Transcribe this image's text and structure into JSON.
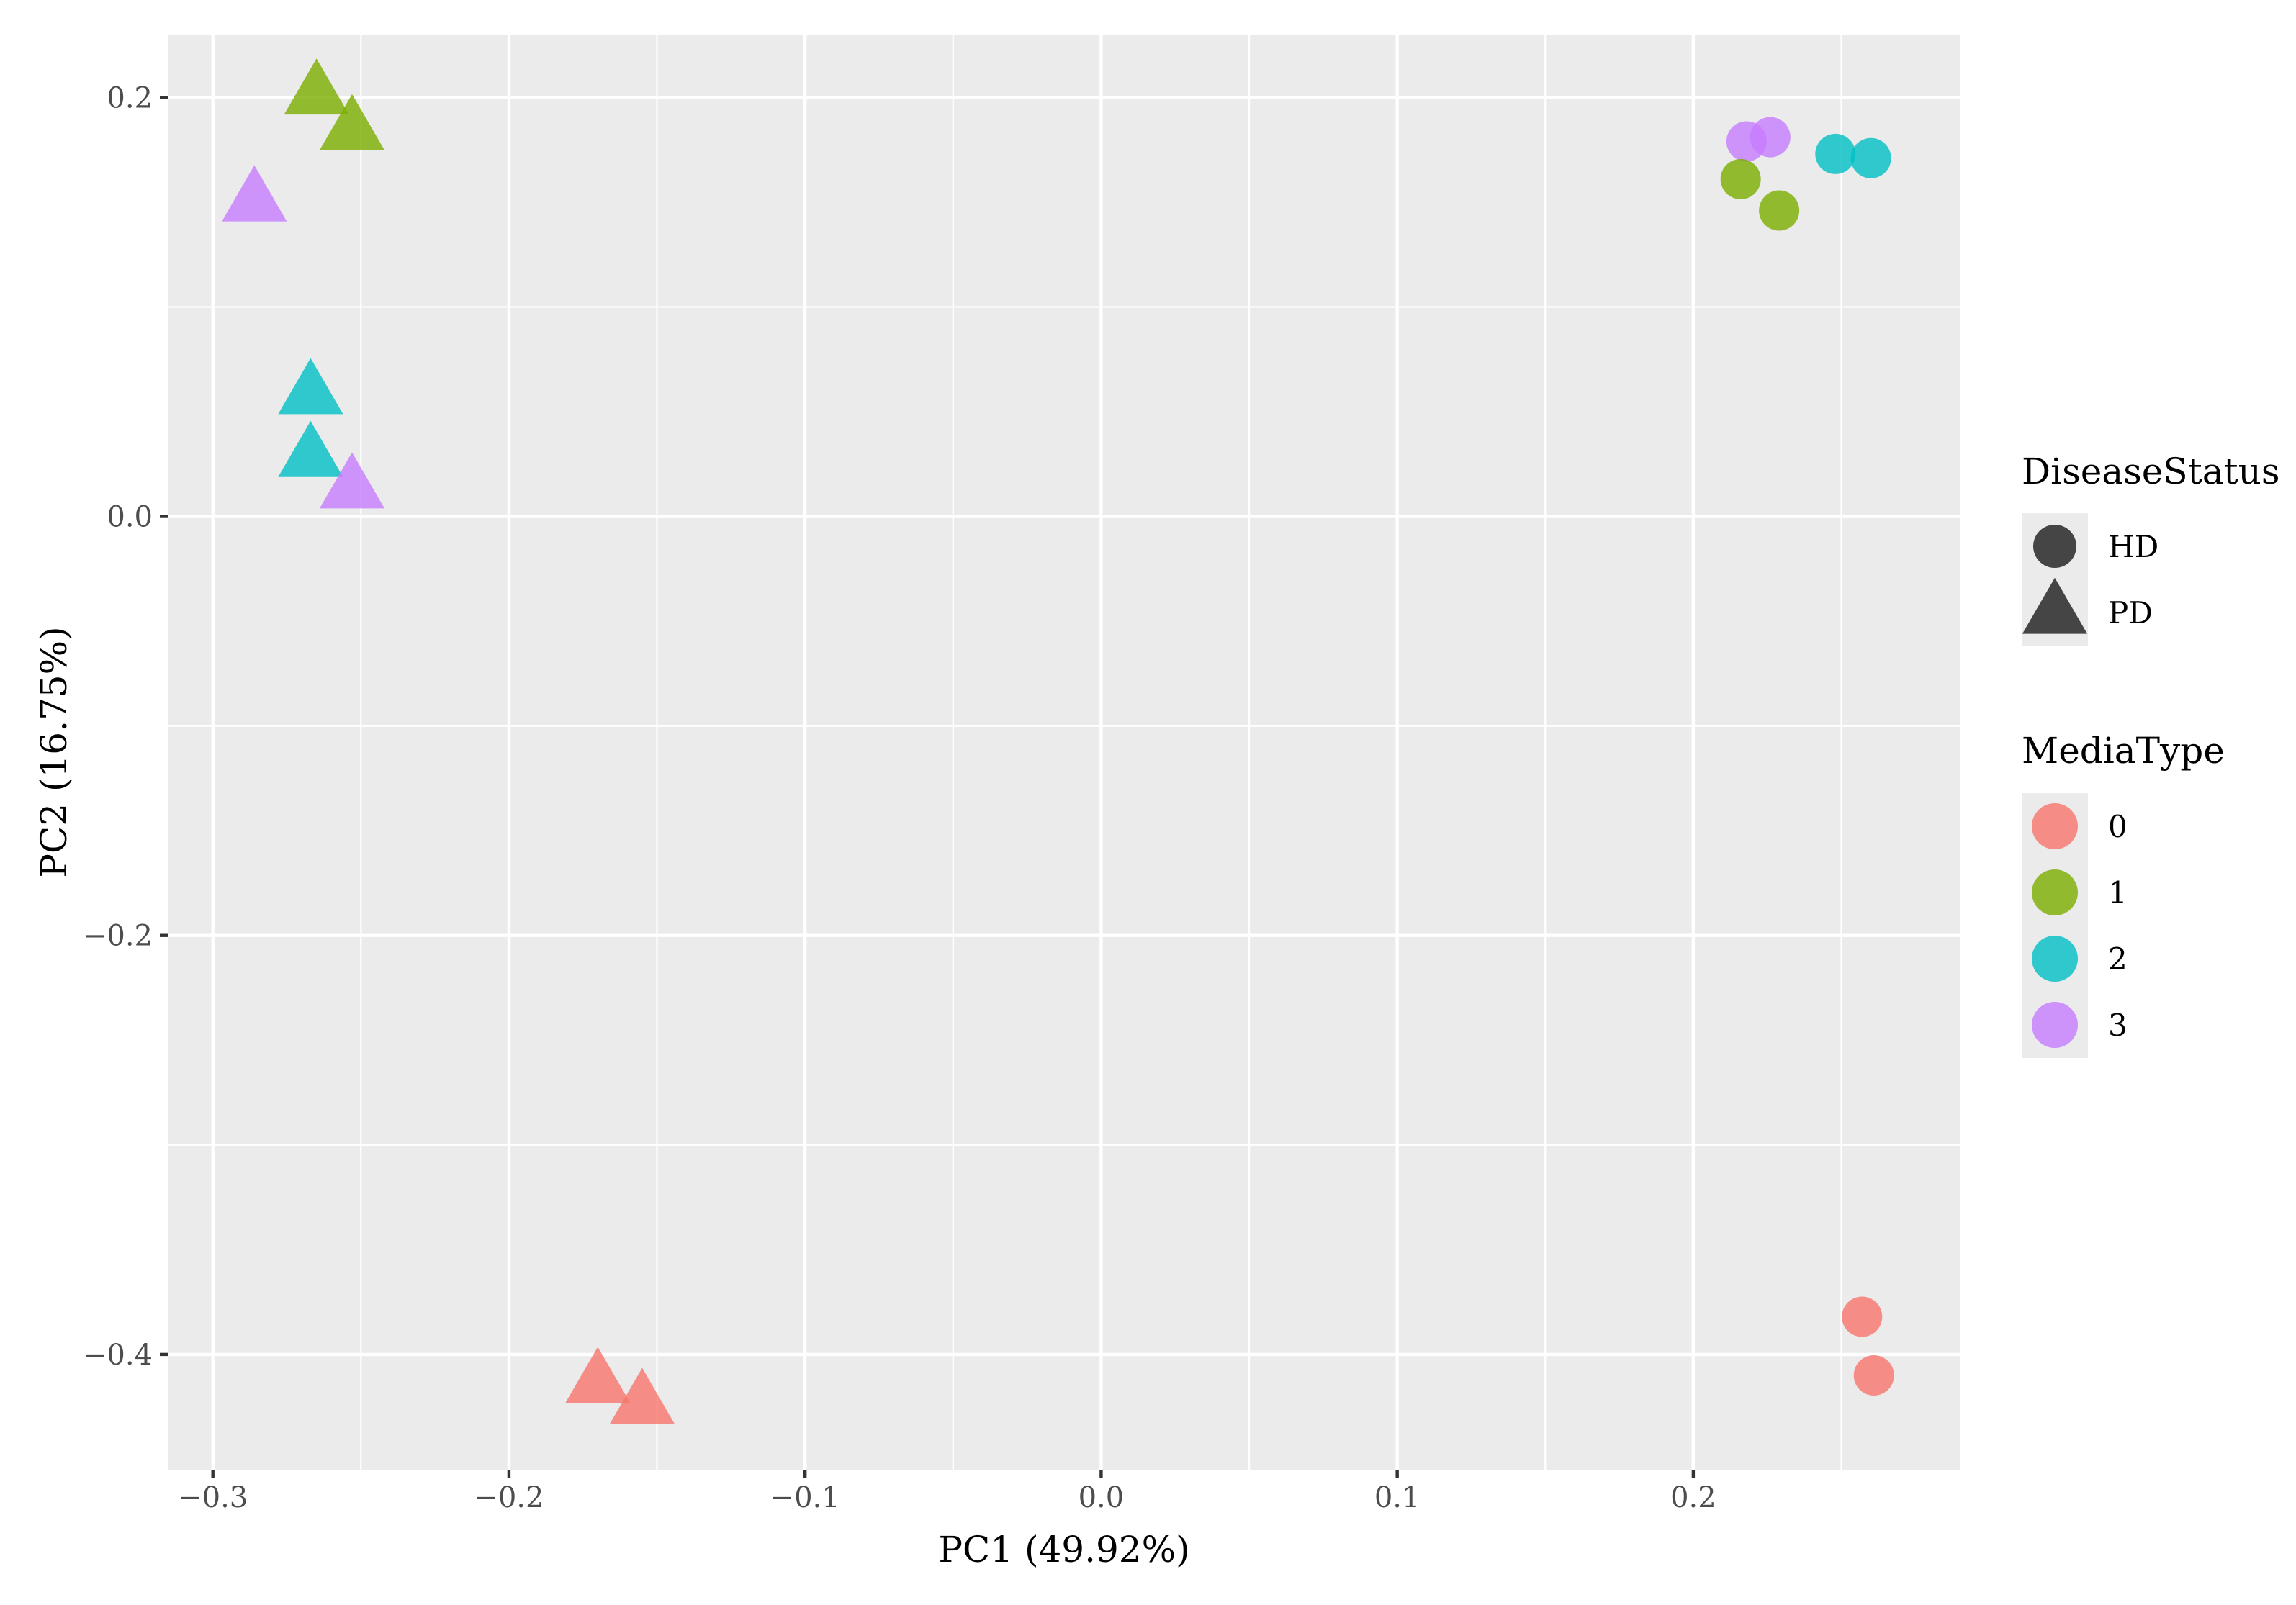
{
  "chart_data": {
    "type": "scatter",
    "title": "",
    "xlabel": "PC1 (49.92%)",
    "ylabel": "PC2 (16.75%)",
    "xlim": [
      -0.315,
      0.29
    ],
    "ylim": [
      -0.455,
      0.23
    ],
    "x_ticks": [
      -0.3,
      -0.2,
      -0.1,
      0.0,
      0.1,
      0.2
    ],
    "x_tick_labels": [
      "−0.3",
      "−0.2",
      "−0.1",
      "0.0",
      "0.1",
      "0.2"
    ],
    "y_ticks": [
      -0.4,
      -0.2,
      0.0,
      0.2
    ],
    "y_tick_labels": [
      "−0.4",
      "−0.2",
      "0.0",
      "0.2"
    ],
    "grid": true,
    "panel_background": "#ebebeb",
    "grid_color": "#ffffff",
    "legend_placement": "right",
    "legends": [
      {
        "title": "DiseaseStatus",
        "type": "shape",
        "entries": [
          {
            "label": "HD",
            "shape": "circle"
          },
          {
            "label": "PD",
            "shape": "triangle"
          }
        ]
      },
      {
        "title": "MediaType",
        "type": "color",
        "entries": [
          {
            "label": "0",
            "color": "#F8766D"
          },
          {
            "label": "1",
            "color": "#7CAE00"
          },
          {
            "label": "2",
            "color": "#00BFC4"
          },
          {
            "label": "3",
            "color": "#C77CFF"
          }
        ]
      }
    ],
    "points": [
      {
        "x": -0.265,
        "y": 0.202,
        "DiseaseStatus": "PD",
        "MediaType": "1"
      },
      {
        "x": -0.253,
        "y": 0.185,
        "DiseaseStatus": "PD",
        "MediaType": "1"
      },
      {
        "x": -0.286,
        "y": 0.151,
        "DiseaseStatus": "PD",
        "MediaType": "3"
      },
      {
        "x": -0.267,
        "y": 0.059,
        "DiseaseStatus": "PD",
        "MediaType": "2"
      },
      {
        "x": -0.267,
        "y": 0.029,
        "DiseaseStatus": "PD",
        "MediaType": "2"
      },
      {
        "x": -0.253,
        "y": 0.014,
        "DiseaseStatus": "PD",
        "MediaType": "3"
      },
      {
        "x": -0.17,
        "y": -0.413,
        "DiseaseStatus": "PD",
        "MediaType": "0"
      },
      {
        "x": -0.155,
        "y": -0.423,
        "DiseaseStatus": "PD",
        "MediaType": "0"
      },
      {
        "x": 0.218,
        "y": 0.179,
        "DiseaseStatus": "HD",
        "MediaType": "3"
      },
      {
        "x": 0.226,
        "y": 0.181,
        "DiseaseStatus": "HD",
        "MediaType": "3"
      },
      {
        "x": 0.216,
        "y": 0.161,
        "DiseaseStatus": "HD",
        "MediaType": "1"
      },
      {
        "x": 0.229,
        "y": 0.146,
        "DiseaseStatus": "HD",
        "MediaType": "1"
      },
      {
        "x": 0.248,
        "y": 0.173,
        "DiseaseStatus": "HD",
        "MediaType": "2"
      },
      {
        "x": 0.26,
        "y": 0.171,
        "DiseaseStatus": "HD",
        "MediaType": "2"
      },
      {
        "x": 0.257,
        "y": -0.382,
        "DiseaseStatus": "HD",
        "MediaType": "0"
      },
      {
        "x": 0.261,
        "y": -0.41,
        "DiseaseStatus": "HD",
        "MediaType": "0"
      }
    ]
  }
}
